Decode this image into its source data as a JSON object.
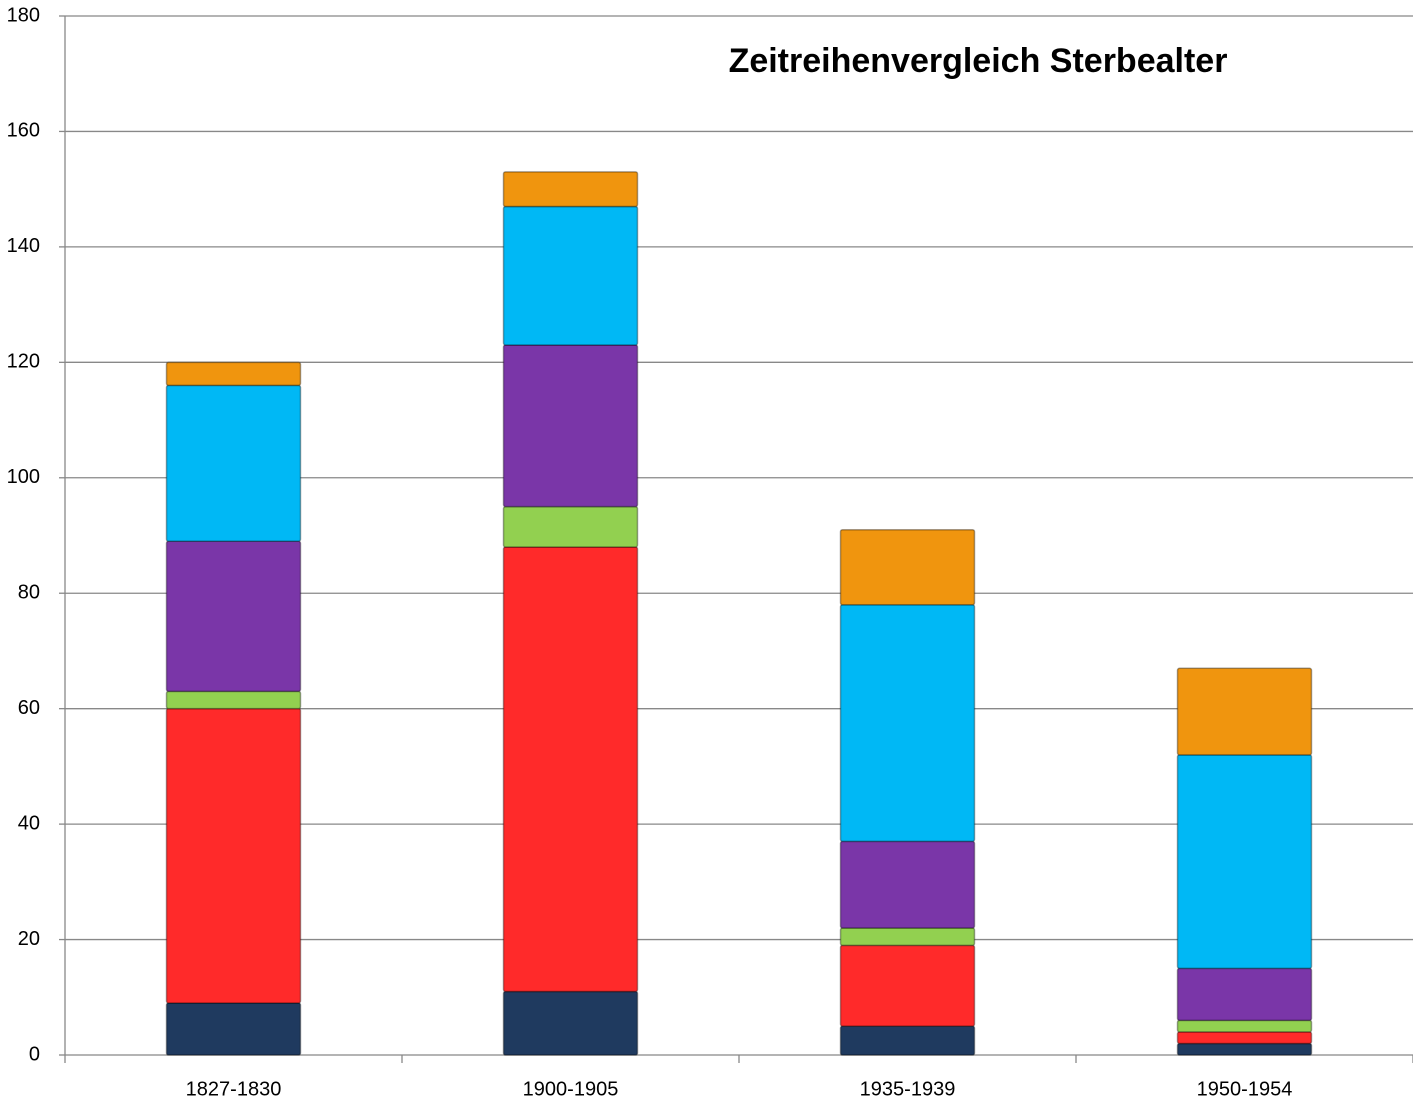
{
  "chart_data": {
    "type": "stacked_bar",
    "title": "Zeitreihenvergleich Sterbealter",
    "categories": [
      "1827-1830",
      "1900-1905",
      "1935-1939",
      "1950-1954"
    ],
    "series": [
      {
        "color": "#1f3a5f",
        "values": [
          9,
          11,
          5,
          2
        ]
      },
      {
        "color": "#ff2a2a",
        "values": [
          51,
          77,
          14,
          2
        ]
      },
      {
        "color": "#92d050",
        "values": [
          3,
          7,
          3,
          2
        ]
      },
      {
        "color": "#7a36a8",
        "values": [
          26,
          28,
          15,
          9
        ]
      },
      {
        "color": "#00b8f5",
        "values": [
          27,
          24,
          41,
          37
        ]
      },
      {
        "color": "#f0950e",
        "values": [
          4,
          6,
          13,
          15
        ]
      }
    ],
    "ylim": [
      0,
      180
    ],
    "yticks": [
      0,
      20,
      40,
      60,
      80,
      100,
      120,
      140,
      160,
      180
    ],
    "grid": true
  }
}
